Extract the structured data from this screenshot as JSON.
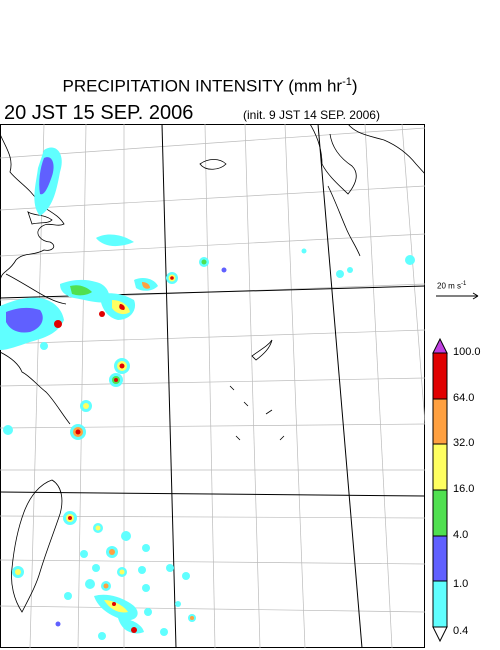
{
  "header": {
    "title": "PRECIPITATION INTENSITY (mm hr",
    "title_sup": "-1",
    "title_close": ")",
    "valid_time": "20 JST 15 SEP. 2006",
    "init_time": "(init. 9 JST 14 SEP. 2006)"
  },
  "wind_reference": {
    "label": "20 m s",
    "sup": "-1"
  },
  "colorbar": {
    "levels": [
      "100.0",
      "64.0",
      "32.0",
      "16.0",
      "4.0",
      "1.0",
      "0.4"
    ],
    "colors": {
      "over": "#c040e0",
      "band_100_64": "#e00000",
      "band_64_32": "#ffa040",
      "band_32_16": "#ffff60",
      "band_16_4": "#50e050",
      "band_4_1": "#6060ff",
      "band_1_04": "#60ffff",
      "under": "#ffffff"
    }
  }
}
